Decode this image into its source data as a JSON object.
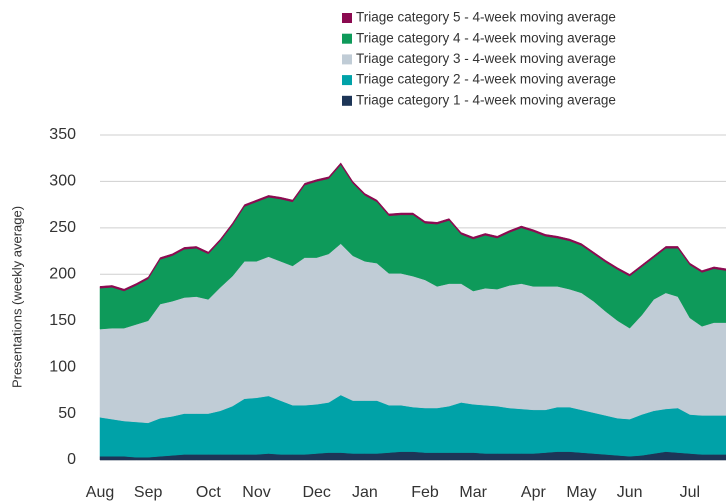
{
  "chart_data": {
    "type": "stacked_area",
    "ylabel": "Presentations (weekly average)",
    "categories": [
      "Aug",
      null,
      null,
      null,
      "Sep",
      null,
      null,
      null,
      null,
      "Oct",
      null,
      null,
      null,
      "Nov",
      null,
      null,
      null,
      null,
      "Dec",
      null,
      null,
      null,
      "Jan",
      null,
      null,
      null,
      null,
      "Feb",
      null,
      null,
      null,
      "Mar",
      null,
      null,
      null,
      null,
      "Apr",
      null,
      null,
      null,
      "May",
      null,
      null,
      null,
      "Jun",
      null,
      null,
      null,
      null,
      "Jul",
      null,
      null,
      null
    ],
    "series": [
      {
        "name": "Triage category 5 - 4-week moving average",
        "color": "#8b0a50",
        "values": [
          2,
          2,
          2,
          2,
          2,
          2,
          2,
          2,
          2,
          2,
          2,
          2,
          2,
          2,
          2,
          2,
          2,
          2,
          2,
          2,
          2,
          2,
          2,
          2,
          2,
          2,
          2,
          2,
          2,
          2,
          2,
          2,
          2,
          2,
          2,
          2,
          2,
          2,
          2,
          2,
          2,
          2,
          2,
          2,
          2,
          2,
          2,
          2,
          2,
          2,
          2,
          2,
          2
        ]
      },
      {
        "name": "Triage category 4 - 4-week moving average",
        "color": "#0e9a5a",
        "values": [
          44,
          44,
          40,
          42,
          45,
          48,
          49,
          52,
          52,
          49,
          50,
          55,
          59,
          64,
          64,
          67,
          69,
          78,
          82,
          81,
          85,
          78,
          71,
          66,
          62,
          63,
          66,
          61,
          67,
          68,
          53,
          56,
          57,
          55,
          57,
          60,
          59,
          54,
          52,
          52,
          51,
          51,
          53,
          55,
          56,
          52,
          45,
          48,
          52,
          57,
          58,
          58,
          56
        ]
      },
      {
        "name": "Triage category 3 - 4-week moving average",
        "color": "#c0ccd6",
        "values": [
          95,
          98,
          100,
          105,
          110,
          123,
          124,
          125,
          126,
          123,
          133,
          140,
          148,
          147,
          150,
          150,
          150,
          159,
          158,
          160,
          163,
          156,
          150,
          148,
          142,
          142,
          141,
          138,
          131,
          132,
          128,
          122,
          126,
          126,
          132,
          135,
          133,
          133,
          130,
          127,
          126,
          120,
          112,
          105,
          98,
          107,
          120,
          125,
          120,
          104,
          96,
          100,
          100
        ]
      },
      {
        "name": "Triage category 2 - 4-week moving average",
        "color": "#00a2a8",
        "values": [
          42,
          40,
          38,
          38,
          37,
          41,
          42,
          44,
          44,
          44,
          47,
          52,
          60,
          61,
          62,
          58,
          53,
          53,
          53,
          54,
          62,
          57,
          57,
          57,
          51,
          50,
          48,
          48,
          48,
          50,
          54,
          52,
          52,
          51,
          49,
          48,
          47,
          46,
          48,
          48,
          46,
          44,
          42,
          40,
          40,
          44,
          46,
          46,
          48,
          42,
          42,
          42,
          42
        ]
      },
      {
        "name": "Triage category 1 - 4-week moving average",
        "color": "#1d3557",
        "values": [
          4,
          4,
          4,
          3,
          3,
          4,
          5,
          6,
          6,
          6,
          6,
          6,
          6,
          6,
          7,
          6,
          6,
          6,
          7,
          8,
          8,
          7,
          7,
          7,
          8,
          9,
          9,
          8,
          8,
          8,
          8,
          8,
          7,
          7,
          7,
          7,
          7,
          8,
          9,
          9,
          8,
          7,
          6,
          5,
          4,
          5,
          7,
          9,
          8,
          7,
          6,
          6,
          6
        ]
      }
    ],
    "ylim": [
      0,
      350
    ],
    "yticks": [
      0,
      50,
      100,
      150,
      200,
      250,
      300,
      350
    ],
    "grid": true
  }
}
